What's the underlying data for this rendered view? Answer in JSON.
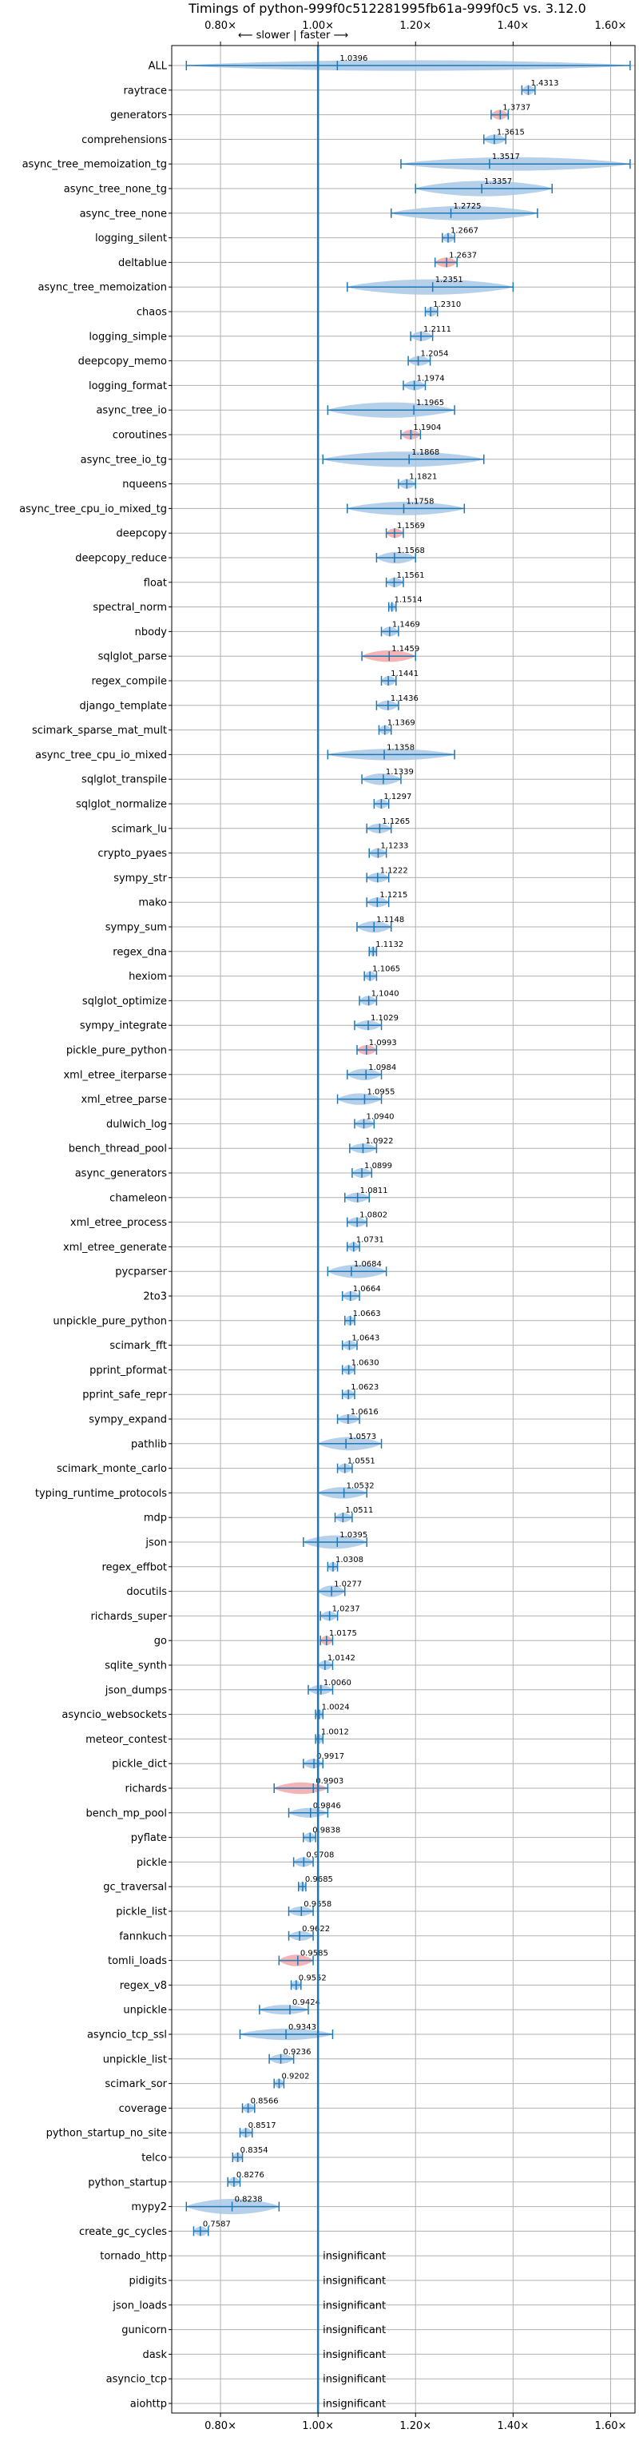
{
  "chart_data": {
    "type": "violin",
    "title": "Timings of python-999f0c512281995fb61a-999f0c5 vs. 3.12.0",
    "direction_label": "⟵ slower | faster ⟶",
    "xlim": [
      0.7,
      1.65
    ],
    "xticks": [
      0.8,
      1.0,
      1.2,
      1.4,
      1.6
    ],
    "xtick_labels": [
      "0.80×",
      "1.00×",
      "1.20×",
      "1.40×",
      "1.60×"
    ],
    "reference_x": 1.0,
    "grid": true,
    "colors": {
      "violin": "#a9c8e6",
      "highlight": "#f4a6a6",
      "line": "#1f77b4"
    },
    "insignificant_text": "insignificant",
    "benchmarks": [
      {
        "name": "ALL",
        "value": 1.0396,
        "label": "1.0396",
        "lo": 0.73,
        "hi": 1.64,
        "w": 0.55,
        "hl": false
      },
      {
        "name": "raytrace",
        "value": 1.4313,
        "label": "1.4313",
        "lo": 1.418,
        "hi": 1.445,
        "w": 0.5,
        "hl": false
      },
      {
        "name": "generators",
        "value": 1.3737,
        "label": "1.3737",
        "lo": 1.355,
        "hi": 1.39,
        "w": 0.5,
        "hl": true
      },
      {
        "name": "comprehensions",
        "value": 1.3615,
        "label": "1.3615",
        "lo": 1.34,
        "hi": 1.385,
        "w": 0.5,
        "hl": false
      },
      {
        "name": "async_tree_memoization_tg",
        "value": 1.3517,
        "label": "1.3517",
        "lo": 1.17,
        "hi": 1.64,
        "w": 0.7,
        "hl": false
      },
      {
        "name": "async_tree_none_tg",
        "value": 1.3357,
        "label": "1.3357",
        "lo": 1.2,
        "hi": 1.48,
        "w": 0.8,
        "hl": false
      },
      {
        "name": "async_tree_none",
        "value": 1.2725,
        "label": "1.2725",
        "lo": 1.15,
        "hi": 1.45,
        "w": 0.75,
        "hl": false
      },
      {
        "name": "logging_silent",
        "value": 1.2667,
        "label": "1.2667",
        "lo": 1.255,
        "hi": 1.28,
        "w": 0.5,
        "hl": false
      },
      {
        "name": "deltablue",
        "value": 1.2637,
        "label": "1.2637",
        "lo": 1.24,
        "hi": 1.285,
        "w": 0.5,
        "hl": true
      },
      {
        "name": "async_tree_memoization",
        "value": 1.2351,
        "label": "1.2351",
        "lo": 1.06,
        "hi": 1.4,
        "w": 0.8,
        "hl": false
      },
      {
        "name": "chaos",
        "value": 1.231,
        "label": "1.2310",
        "lo": 1.22,
        "hi": 1.245,
        "w": 0.5,
        "hl": false
      },
      {
        "name": "logging_simple",
        "value": 1.2111,
        "label": "1.2111",
        "lo": 1.19,
        "hi": 1.235,
        "w": 0.5,
        "hl": false
      },
      {
        "name": "deepcopy_memo",
        "value": 1.2054,
        "label": "1.2054",
        "lo": 1.185,
        "hi": 1.23,
        "w": 0.5,
        "hl": false
      },
      {
        "name": "logging_format",
        "value": 1.1974,
        "label": "1.1974",
        "lo": 1.175,
        "hi": 1.22,
        "w": 0.5,
        "hl": false
      },
      {
        "name": "async_tree_io",
        "value": 1.1965,
        "label": "1.1965",
        "lo": 1.02,
        "hi": 1.28,
        "w": 0.8,
        "hl": false
      },
      {
        "name": "coroutines",
        "value": 1.1904,
        "label": "1.1904",
        "lo": 1.17,
        "hi": 1.21,
        "w": 0.5,
        "hl": true
      },
      {
        "name": "async_tree_io_tg",
        "value": 1.1868,
        "label": "1.1868",
        "lo": 1.01,
        "hi": 1.34,
        "w": 0.8,
        "hl": false
      },
      {
        "name": "nqueens",
        "value": 1.1821,
        "label": "1.1821",
        "lo": 1.165,
        "hi": 1.2,
        "w": 0.5,
        "hl": false
      },
      {
        "name": "async_tree_cpu_io_mixed_tg",
        "value": 1.1758,
        "label": "1.1758",
        "lo": 1.06,
        "hi": 1.3,
        "w": 0.7,
        "hl": false
      },
      {
        "name": "deepcopy",
        "value": 1.1569,
        "label": "1.1569",
        "lo": 1.14,
        "hi": 1.175,
        "w": 0.5,
        "hl": true
      },
      {
        "name": "deepcopy_reduce",
        "value": 1.1568,
        "label": "1.1568",
        "lo": 1.12,
        "hi": 1.2,
        "w": 0.6,
        "hl": false
      },
      {
        "name": "float",
        "value": 1.1561,
        "label": "1.1561",
        "lo": 1.14,
        "hi": 1.175,
        "w": 0.5,
        "hl": false
      },
      {
        "name": "spectral_norm",
        "value": 1.1514,
        "label": "1.1514",
        "lo": 1.145,
        "hi": 1.16,
        "w": 0.45,
        "hl": false
      },
      {
        "name": "nbody",
        "value": 1.1469,
        "label": "1.1469",
        "lo": 1.13,
        "hi": 1.165,
        "w": 0.5,
        "hl": false
      },
      {
        "name": "sqlglot_parse",
        "value": 1.1459,
        "label": "1.1459",
        "lo": 1.09,
        "hi": 1.2,
        "w": 0.6,
        "hl": true
      },
      {
        "name": "regex_compile",
        "value": 1.1441,
        "label": "1.1441",
        "lo": 1.13,
        "hi": 1.16,
        "w": 0.5,
        "hl": false
      },
      {
        "name": "django_template",
        "value": 1.1436,
        "label": "1.1436",
        "lo": 1.12,
        "hi": 1.165,
        "w": 0.5,
        "hl": false
      },
      {
        "name": "scimark_sparse_mat_mult",
        "value": 1.1369,
        "label": "1.1369",
        "lo": 1.125,
        "hi": 1.15,
        "w": 0.5,
        "hl": false
      },
      {
        "name": "async_tree_cpu_io_mixed",
        "value": 1.1358,
        "label": "1.1358",
        "lo": 1.02,
        "hi": 1.28,
        "w": 0.6,
        "hl": false
      },
      {
        "name": "sqlglot_transpile",
        "value": 1.1339,
        "label": "1.1339",
        "lo": 1.09,
        "hi": 1.17,
        "w": 0.6,
        "hl": false
      },
      {
        "name": "sqlglot_normalize",
        "value": 1.1297,
        "label": "1.1297",
        "lo": 1.115,
        "hi": 1.145,
        "w": 0.5,
        "hl": false
      },
      {
        "name": "scimark_lu",
        "value": 1.1265,
        "label": "1.1265",
        "lo": 1.1,
        "hi": 1.15,
        "w": 0.5,
        "hl": false
      },
      {
        "name": "crypto_pyaes",
        "value": 1.1233,
        "label": "1.1233",
        "lo": 1.105,
        "hi": 1.14,
        "w": 0.5,
        "hl": false
      },
      {
        "name": "sympy_str",
        "value": 1.1222,
        "label": "1.1222",
        "lo": 1.1,
        "hi": 1.145,
        "w": 0.5,
        "hl": false
      },
      {
        "name": "mako",
        "value": 1.1215,
        "label": "1.1215",
        "lo": 1.1,
        "hi": 1.145,
        "w": 0.5,
        "hl": false
      },
      {
        "name": "sympy_sum",
        "value": 1.1148,
        "label": "1.1148",
        "lo": 1.08,
        "hi": 1.15,
        "w": 0.6,
        "hl": false
      },
      {
        "name": "regex_dna",
        "value": 1.1132,
        "label": "1.1132",
        "lo": 1.105,
        "hi": 1.12,
        "w": 0.5,
        "hl": false
      },
      {
        "name": "hexiom",
        "value": 1.1065,
        "label": "1.1065",
        "lo": 1.095,
        "hi": 1.12,
        "w": 0.5,
        "hl": false
      },
      {
        "name": "sqlglot_optimize",
        "value": 1.104,
        "label": "1.1040",
        "lo": 1.085,
        "hi": 1.12,
        "w": 0.5,
        "hl": false
      },
      {
        "name": "sympy_integrate",
        "value": 1.1029,
        "label": "1.1029",
        "lo": 1.075,
        "hi": 1.13,
        "w": 0.5,
        "hl": false
      },
      {
        "name": "pickle_pure_python",
        "value": 1.0993,
        "label": "1.0993",
        "lo": 1.08,
        "hi": 1.12,
        "w": 0.5,
        "hl": true
      },
      {
        "name": "xml_etree_iterparse",
        "value": 1.0984,
        "label": "1.0984",
        "lo": 1.06,
        "hi": 1.13,
        "w": 0.6,
        "hl": false
      },
      {
        "name": "xml_etree_parse",
        "value": 1.0955,
        "label": "1.0955",
        "lo": 1.04,
        "hi": 1.13,
        "w": 0.6,
        "hl": false
      },
      {
        "name": "dulwich_log",
        "value": 1.094,
        "label": "1.0940",
        "lo": 1.075,
        "hi": 1.115,
        "w": 0.5,
        "hl": false
      },
      {
        "name": "bench_thread_pool",
        "value": 1.0922,
        "label": "1.0922",
        "lo": 1.065,
        "hi": 1.12,
        "w": 0.5,
        "hl": false
      },
      {
        "name": "async_generators",
        "value": 1.0899,
        "label": "1.0899",
        "lo": 1.07,
        "hi": 1.11,
        "w": 0.5,
        "hl": false
      },
      {
        "name": "chameleon",
        "value": 1.0811,
        "label": "1.0811",
        "lo": 1.055,
        "hi": 1.105,
        "w": 0.5,
        "hl": false
      },
      {
        "name": "xml_etree_process",
        "value": 1.0802,
        "label": "1.0802",
        "lo": 1.06,
        "hi": 1.1,
        "w": 0.5,
        "hl": false
      },
      {
        "name": "xml_etree_generate",
        "value": 1.0731,
        "label": "1.0731",
        "lo": 1.06,
        "hi": 1.085,
        "w": 0.5,
        "hl": false
      },
      {
        "name": "pycparser",
        "value": 1.0684,
        "label": "1.0684",
        "lo": 1.02,
        "hi": 1.14,
        "w": 0.7,
        "hl": false
      },
      {
        "name": "2to3",
        "value": 1.0664,
        "label": "1.0664",
        "lo": 1.05,
        "hi": 1.085,
        "w": 0.5,
        "hl": false
      },
      {
        "name": "unpickle_pure_python",
        "value": 1.0663,
        "label": "1.0663",
        "lo": 1.055,
        "hi": 1.075,
        "w": 0.5,
        "hl": false
      },
      {
        "name": "scimark_fft",
        "value": 1.0643,
        "label": "1.0643",
        "lo": 1.05,
        "hi": 1.08,
        "w": 0.5,
        "hl": false
      },
      {
        "name": "pprint_pformat",
        "value": 1.063,
        "label": "1.0630",
        "lo": 1.05,
        "hi": 1.075,
        "w": 0.5,
        "hl": false
      },
      {
        "name": "pprint_safe_repr",
        "value": 1.0623,
        "label": "1.0623",
        "lo": 1.05,
        "hi": 1.075,
        "w": 0.5,
        "hl": false
      },
      {
        "name": "sympy_expand",
        "value": 1.0616,
        "label": "1.0616",
        "lo": 1.04,
        "hi": 1.085,
        "w": 0.5,
        "hl": false
      },
      {
        "name": "pathlib",
        "value": 1.0573,
        "label": "1.0573",
        "lo": 1.0,
        "hi": 1.13,
        "w": 0.7,
        "hl": false
      },
      {
        "name": "scimark_monte_carlo",
        "value": 1.0551,
        "label": "1.0551",
        "lo": 1.04,
        "hi": 1.07,
        "w": 0.5,
        "hl": false
      },
      {
        "name": "typing_runtime_protocols",
        "value": 1.0532,
        "label": "1.0532",
        "lo": 1.0,
        "hi": 1.1,
        "w": 0.6,
        "hl": false
      },
      {
        "name": "mdp",
        "value": 1.0511,
        "label": "1.0511",
        "lo": 1.035,
        "hi": 1.07,
        "w": 0.5,
        "hl": false
      },
      {
        "name": "json",
        "value": 1.0395,
        "label": "1.0395",
        "lo": 0.97,
        "hi": 1.1,
        "w": 0.7,
        "hl": false
      },
      {
        "name": "regex_effbot",
        "value": 1.0308,
        "label": "1.0308",
        "lo": 1.02,
        "hi": 1.04,
        "w": 0.5,
        "hl": false
      },
      {
        "name": "docutils",
        "value": 1.0277,
        "label": "1.0277",
        "lo": 1.0,
        "hi": 1.055,
        "w": 0.6,
        "hl": false
      },
      {
        "name": "richards_super",
        "value": 1.0237,
        "label": "1.0237",
        "lo": 1.005,
        "hi": 1.04,
        "w": 0.5,
        "hl": false
      },
      {
        "name": "go",
        "value": 1.0175,
        "label": "1.0175",
        "lo": 1.005,
        "hi": 1.03,
        "w": 0.5,
        "hl": true
      },
      {
        "name": "sqlite_synth",
        "value": 1.0142,
        "label": "1.0142",
        "lo": 1.0,
        "hi": 1.03,
        "w": 0.5,
        "hl": false
      },
      {
        "name": "json_dumps",
        "value": 1.006,
        "label": "1.0060",
        "lo": 0.98,
        "hi": 1.03,
        "w": 0.5,
        "hl": false
      },
      {
        "name": "asyncio_websockets",
        "value": 1.0024,
        "label": "1.0024",
        "lo": 0.995,
        "hi": 1.01,
        "w": 0.5,
        "hl": false
      },
      {
        "name": "meteor_contest",
        "value": 1.0012,
        "label": "1.0012",
        "lo": 0.995,
        "hi": 1.01,
        "w": 0.5,
        "hl": false
      },
      {
        "name": "pickle_dict",
        "value": 0.9917,
        "label": "0.9917",
        "lo": 0.97,
        "hi": 1.01,
        "w": 0.5,
        "hl": false
      },
      {
        "name": "richards",
        "value": 0.9903,
        "label": "0.9903",
        "lo": 0.91,
        "hi": 1.02,
        "w": 0.6,
        "hl": true
      },
      {
        "name": "bench_mp_pool",
        "value": 0.9846,
        "label": "0.9846",
        "lo": 0.94,
        "hi": 1.02,
        "w": 0.5,
        "hl": false
      },
      {
        "name": "pyflate",
        "value": 0.9838,
        "label": "0.9838",
        "lo": 0.97,
        "hi": 0.995,
        "w": 0.5,
        "hl": false
      },
      {
        "name": "pickle",
        "value": 0.9708,
        "label": "0.9708",
        "lo": 0.95,
        "hi": 0.99,
        "w": 0.5,
        "hl": false
      },
      {
        "name": "gc_traversal",
        "value": 0.9685,
        "label": "0.9685",
        "lo": 0.96,
        "hi": 0.975,
        "w": 0.5,
        "hl": false
      },
      {
        "name": "pickle_list",
        "value": 0.9658,
        "label": "0.9658",
        "lo": 0.94,
        "hi": 0.99,
        "w": 0.5,
        "hl": false
      },
      {
        "name": "fannkuch",
        "value": 0.9622,
        "label": "0.9622",
        "lo": 0.94,
        "hi": 0.99,
        "w": 0.5,
        "hl": false
      },
      {
        "name": "tomli_loads",
        "value": 0.9585,
        "label": "0.9585",
        "lo": 0.92,
        "hi": 0.99,
        "w": 0.6,
        "hl": true
      },
      {
        "name": "regex_v8",
        "value": 0.9552,
        "label": "0.9552",
        "lo": 0.945,
        "hi": 0.965,
        "w": 0.5,
        "hl": false
      },
      {
        "name": "unpickle",
        "value": 0.9424,
        "label": "0.9424",
        "lo": 0.88,
        "hi": 0.98,
        "w": 0.5,
        "hl": false
      },
      {
        "name": "asyncio_tcp_ssl",
        "value": 0.9343,
        "label": "0.9343",
        "lo": 0.84,
        "hi": 1.03,
        "w": 0.6,
        "hl": false
      },
      {
        "name": "unpickle_list",
        "value": 0.9236,
        "label": "0.9236",
        "lo": 0.9,
        "hi": 0.95,
        "w": 0.5,
        "hl": false
      },
      {
        "name": "scimark_sor",
        "value": 0.9202,
        "label": "0.9202",
        "lo": 0.91,
        "hi": 0.93,
        "w": 0.5,
        "hl": false
      },
      {
        "name": "coverage",
        "value": 0.8566,
        "label": "0.8566",
        "lo": 0.845,
        "hi": 0.87,
        "w": 0.5,
        "hl": false
      },
      {
        "name": "python_startup_no_site",
        "value": 0.8517,
        "label": "0.8517",
        "lo": 0.84,
        "hi": 0.865,
        "w": 0.5,
        "hl": false
      },
      {
        "name": "telco",
        "value": 0.8354,
        "label": "0.8354",
        "lo": 0.825,
        "hi": 0.845,
        "w": 0.5,
        "hl": false
      },
      {
        "name": "python_startup",
        "value": 0.8276,
        "label": "0.8276",
        "lo": 0.815,
        "hi": 0.84,
        "w": 0.5,
        "hl": false
      },
      {
        "name": "mypy2",
        "value": 0.8238,
        "label": "0.8238",
        "lo": 0.73,
        "hi": 0.92,
        "w": 0.8,
        "hl": false
      },
      {
        "name": "create_gc_cycles",
        "value": 0.7587,
        "label": "0.7587",
        "lo": 0.745,
        "hi": 0.775,
        "w": 0.5,
        "hl": false
      },
      {
        "name": "tornado_http",
        "insignificant": true
      },
      {
        "name": "pidigits",
        "insignificant": true
      },
      {
        "name": "json_loads",
        "insignificant": true
      },
      {
        "name": "gunicorn",
        "insignificant": true
      },
      {
        "name": "dask",
        "insignificant": true
      },
      {
        "name": "asyncio_tcp",
        "insignificant": true
      },
      {
        "name": "aiohttp",
        "insignificant": true
      }
    ]
  }
}
